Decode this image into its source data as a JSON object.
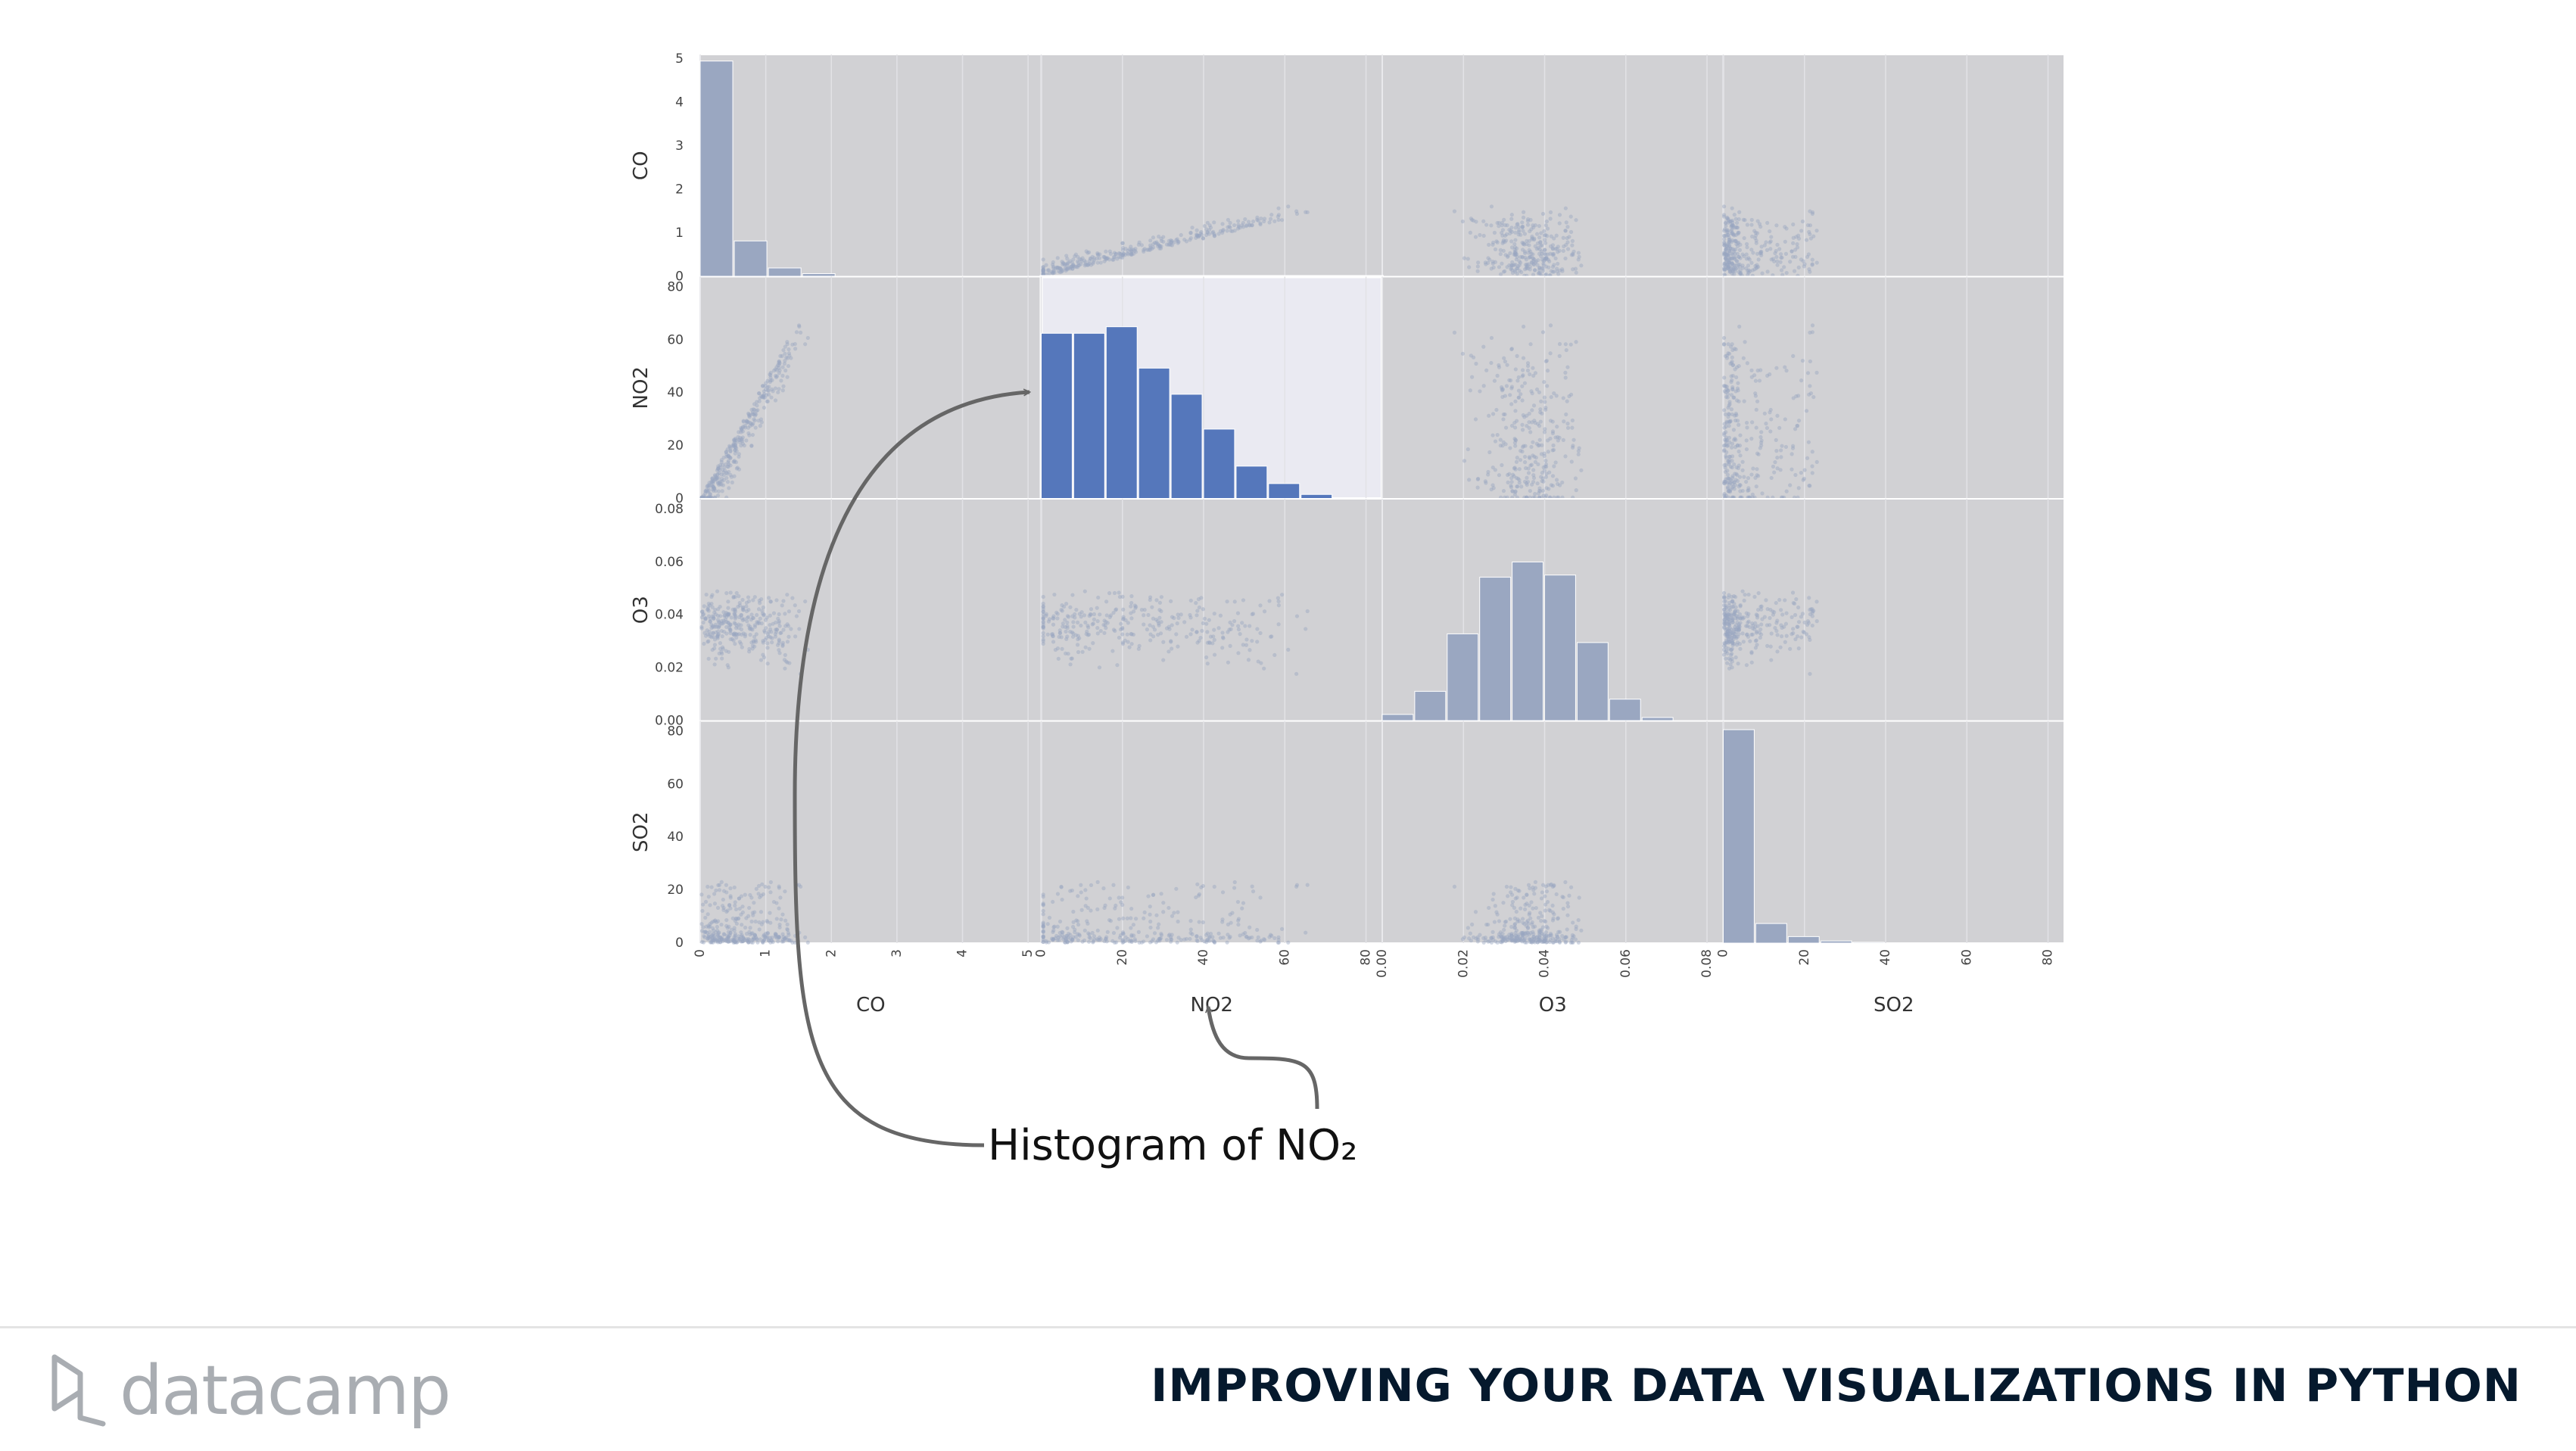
{
  "chart_data": {
    "type": "scatter-matrix",
    "variables": [
      "CO",
      "NO2",
      "O3",
      "SO2"
    ],
    "ranges": {
      "CO": [
        0,
        5.2
      ],
      "NO2": [
        0,
        84
      ],
      "O3": [
        0,
        0.084
      ],
      "SO2": [
        0,
        84
      ]
    },
    "ticks": {
      "CO": {
        "values": [
          0,
          1,
          2,
          3,
          4,
          5
        ],
        "labels": [
          "0",
          "1",
          "2",
          "3",
          "4",
          "5"
        ]
      },
      "NO2": {
        "values": [
          0,
          20,
          40,
          60,
          80
        ],
        "labels": [
          "0",
          "20",
          "40",
          "60",
          "80"
        ]
      },
      "O3": {
        "values": [
          0,
          0.02,
          0.04,
          0.06,
          0.08
        ],
        "labels": [
          "0.00",
          "0.02",
          "0.04",
          "0.06",
          "0.08"
        ]
      },
      "SO2": {
        "values": [
          0,
          20,
          40,
          60,
          80
        ],
        "labels": [
          "0",
          "20",
          "40",
          "60",
          "80"
        ]
      }
    },
    "diag_y_ticks": {
      "values": [
        0,
        1,
        2,
        3,
        4,
        5
      ],
      "labels": [
        "0",
        "1",
        "2",
        "3",
        "4",
        "5"
      ]
    },
    "histograms": {
      "CO": {
        "edges": [
          0,
          0.52,
          1.04,
          1.56,
          2.08
        ],
        "counts": [
          4.95,
          0.82,
          0.2,
          0.07
        ]
      },
      "NO2": {
        "edges": [
          0,
          8,
          16,
          24,
          32,
          40,
          48,
          56,
          64,
          72,
          80
        ],
        "counts": [
          3.8,
          3.8,
          3.95,
          3.0,
          2.4,
          1.6,
          0.75,
          0.35,
          0.1,
          0.02
        ]
      },
      "O3": {
        "edges": [
          0,
          0.008,
          0.016,
          0.024,
          0.032,
          0.04,
          0.048,
          0.056,
          0.064,
          0.072
        ],
        "counts": [
          0.15,
          0.68,
          2.0,
          3.3,
          3.65,
          3.35,
          1.8,
          0.5,
          0.08
        ]
      },
      "SO2": {
        "edges": [
          0,
          8,
          16,
          24,
          32,
          40
        ],
        "counts": [
          4.9,
          0.45,
          0.15,
          0.05,
          0.02
        ]
      }
    },
    "highlight": "NO2",
    "colors": {
      "panel_bg": "#d1d1d4",
      "highlight_bg": "#eaeaf2",
      "muted": "#9aa7c1",
      "highlight_bar": "#5577bb",
      "grid": "#e2e2e6"
    }
  },
  "annotation": {
    "text": "Histogram of NO₂"
  },
  "footer": {
    "logo_text": "datacamp",
    "course_title": "IMPROVING YOUR DATA VISUALIZATIONS IN PYTHON"
  }
}
